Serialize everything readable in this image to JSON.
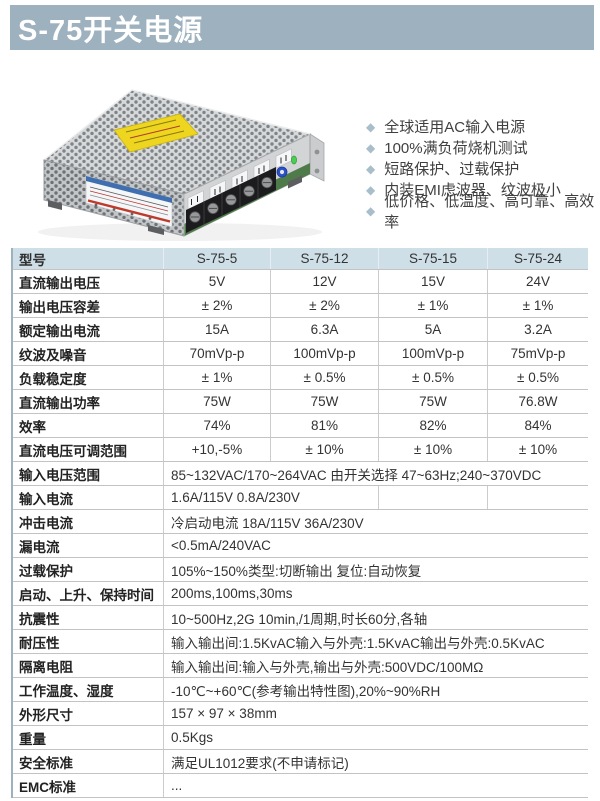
{
  "header": {
    "title": "S-75开关电源"
  },
  "icons": {
    "diamond_bullet": "◆"
  },
  "colors": {
    "accent": "#9db1bf",
    "table_header_bg": "#cfdfe8",
    "bullet": "#a9becb"
  },
  "features": [
    "全球适用AC输入电源",
    "100%满负荷烧机测试",
    "短路保护、过载保护",
    "内装EMI虑波器、纹波极小",
    "低价格、低温度、高可靠、高效率"
  ],
  "table": {
    "header": [
      "型号",
      "S-75-5",
      "S-75-12",
      "S-75-15",
      "S-75-24"
    ],
    "rows": [
      {
        "label": "直流输出电压",
        "values": [
          "5V",
          "12V",
          "15V",
          "24V"
        ]
      },
      {
        "label": "输出电压容差",
        "values": [
          "± 2%",
          "± 2%",
          "± 1%",
          "± 1%"
        ]
      },
      {
        "label": "额定输出电流",
        "values": [
          "15A",
          "6.3A",
          "5A",
          "3.2A"
        ]
      },
      {
        "label": "纹波及噪音",
        "values": [
          "70mVp-p",
          "100mVp-p",
          "100mVp-p",
          "75mVp-p"
        ]
      },
      {
        "label": "负载稳定度",
        "values": [
          "± 1%",
          "± 0.5%",
          "± 0.5%",
          "± 0.5%"
        ]
      },
      {
        "label": "直流输出功率",
        "values": [
          "75W",
          "75W",
          "75W",
          "76.8W"
        ]
      },
      {
        "label": "效率",
        "values": [
          "74%",
          "81%",
          "82%",
          "84%"
        ]
      },
      {
        "label": "直流电压可调范围",
        "values": [
          "+10,-5%",
          "± 10%",
          "± 10%",
          "± 10%"
        ]
      },
      {
        "label": "输入电压范围",
        "span": "85~132VAC/170~264VAC 由开关选择 47~63Hz;240~370VDC"
      },
      {
        "label": "输入电流",
        "span2": "1.6A/115V 0.8A/230V"
      },
      {
        "label": "冲击电流",
        "span": "冷启动电流 18A/115V 36A/230V"
      },
      {
        "label": "漏电流",
        "span": "<0.5mA/240VAC"
      },
      {
        "label": "过载保护",
        "span": "105%~150%类型:切断输出  复位:自动恢复"
      },
      {
        "label": "启动、上升、保持时间",
        "span": "200ms,100ms,30ms"
      },
      {
        "label": "抗震性",
        "span": "10~500Hz,2G 10min,/1周期,时长60分,各轴"
      },
      {
        "label": "耐压性",
        "span": "输入输出间:1.5KvAC输入与外壳:1.5KvAC输出与外壳:0.5KvAC"
      },
      {
        "label": "隔离电阻",
        "span": "输入输出间:输入与外壳,输出与外壳:500VDC/100MΩ"
      },
      {
        "label": "工作温度、湿度",
        "span": "-10℃~+60℃(参考输出特性图),20%~90%RH"
      },
      {
        "label": "外形尺寸",
        "span": "157 × 97 × 38mm"
      },
      {
        "label": "重量",
        "span": "0.5Kgs"
      },
      {
        "label": "安全标准",
        "span": "满足UL1012要求(不申请标记)"
      },
      {
        "label": "EMC标准",
        "span": "..."
      }
    ]
  }
}
